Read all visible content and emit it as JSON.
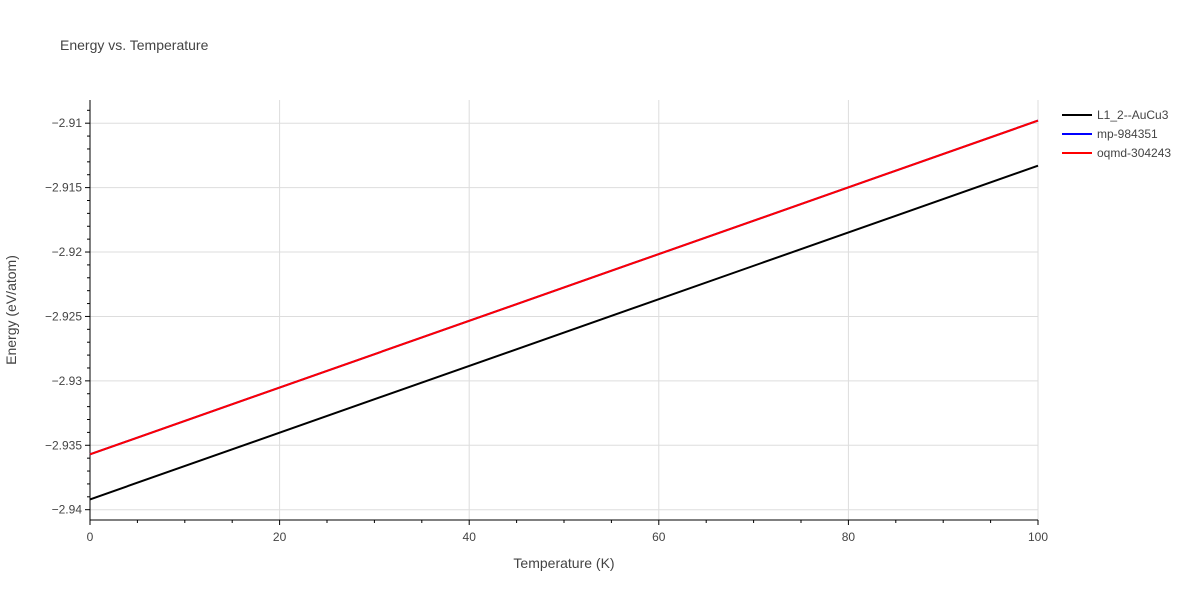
{
  "chart_data": {
    "type": "line",
    "title": "Energy vs. Temperature",
    "xlabel": "Temperature (K)",
    "ylabel": "Energy (eV/atom)",
    "xlim": [
      0,
      100
    ],
    "ylim": [
      -2.9408,
      -2.9082
    ],
    "x_ticks": [
      0,
      20,
      40,
      60,
      80,
      100
    ],
    "x_tick_labels": [
      "0",
      "20",
      "40",
      "60",
      "80",
      "100"
    ],
    "y_ticks": [
      -2.94,
      -2.935,
      -2.93,
      -2.925,
      -2.92,
      -2.915,
      -2.91
    ],
    "y_tick_labels": [
      "−2.94",
      "−2.935",
      "−2.93",
      "−2.925",
      "−2.92",
      "−2.915",
      "−2.91"
    ],
    "grid": true,
    "legend_position": "top-right",
    "series": [
      {
        "name": "L1_2--AuCu3",
        "color": "#000000",
        "x": [
          0,
          100
        ],
        "y": [
          -2.9392,
          -2.9133
        ]
      },
      {
        "name": "mp-984351",
        "color": "#0000ff",
        "x": [
          0,
          100
        ],
        "y": [
          -2.9357,
          -2.9098
        ]
      },
      {
        "name": "oqmd-304243",
        "color": "#ff0000",
        "x": [
          0,
          100
        ],
        "y": [
          -2.9357,
          -2.9098
        ]
      }
    ]
  }
}
